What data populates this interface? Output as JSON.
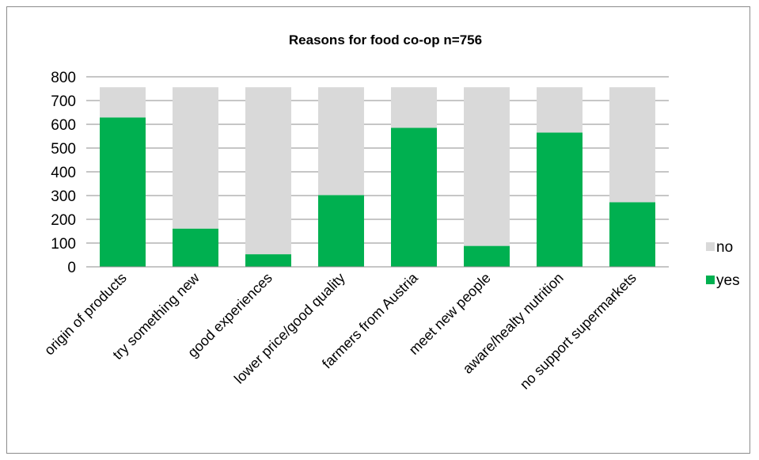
{
  "chart_data": {
    "type": "bar",
    "stacked": true,
    "title": "Reasons for food co-op n=756",
    "xlabel": "",
    "ylabel": "",
    "ylim": [
      0,
      800
    ],
    "yticks": [
      0,
      100,
      200,
      300,
      400,
      500,
      600,
      700,
      800
    ],
    "grid": true,
    "legend_position": "right",
    "categories": [
      "origin of products",
      "try something new",
      "good experiences",
      "lower price/good quality",
      "farmers from Austria",
      "meet new people",
      "aware/healty nutrition",
      "no support supermarkets"
    ],
    "series": [
      {
        "name": "yes",
        "color": "#00b050",
        "values": [
          629,
          161,
          53,
          302,
          585,
          88,
          565,
          272
        ]
      },
      {
        "name": "no",
        "color": "#d9d9d9",
        "values": [
          127,
          595,
          703,
          454,
          171,
          668,
          191,
          484
        ]
      }
    ],
    "legend_order": [
      "no",
      "yes"
    ]
  }
}
